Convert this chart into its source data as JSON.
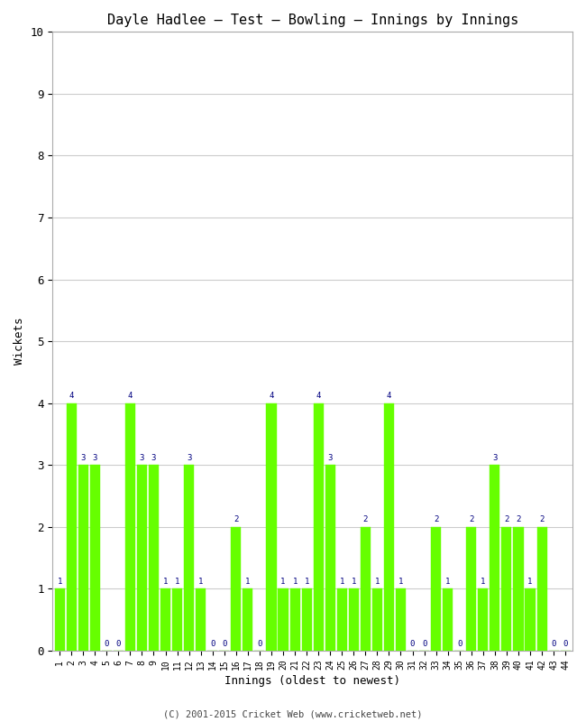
{
  "title": "Dayle Hadlee – Test – Bowling – Innings by Innings",
  "xlabel": "Innings (oldest to newest)",
  "ylabel": "Wickets",
  "ylim": [
    0,
    10
  ],
  "yticks": [
    0,
    1,
    2,
    3,
    4,
    5,
    6,
    7,
    8,
    9,
    10
  ],
  "bar_color": "#66ff00",
  "bar_edge_color": "#66ff00",
  "label_color": "#000080",
  "background_color": "#ffffff",
  "grid_color": "#cccccc",
  "footer": "(C) 2001-2015 Cricket Web (www.cricketweb.net)",
  "innings": [
    1,
    2,
    3,
    4,
    5,
    6,
    7,
    8,
    9,
    10,
    11,
    12,
    13,
    14,
    15,
    16,
    17,
    18,
    19,
    20,
    21,
    22,
    23,
    24,
    25,
    26,
    27,
    28,
    29,
    30,
    31,
    32,
    33,
    34,
    35,
    36,
    37,
    38,
    39,
    40,
    41,
    42,
    43,
    44
  ],
  "wickets": [
    1,
    4,
    3,
    3,
    0,
    0,
    4,
    3,
    3,
    1,
    1,
    3,
    1,
    0,
    0,
    2,
    1,
    0,
    4,
    1,
    1,
    1,
    4,
    3,
    1,
    1,
    2,
    1,
    4,
    1,
    0,
    0,
    2,
    1,
    0,
    2,
    1,
    3,
    2,
    2,
    1,
    2,
    0,
    0
  ]
}
